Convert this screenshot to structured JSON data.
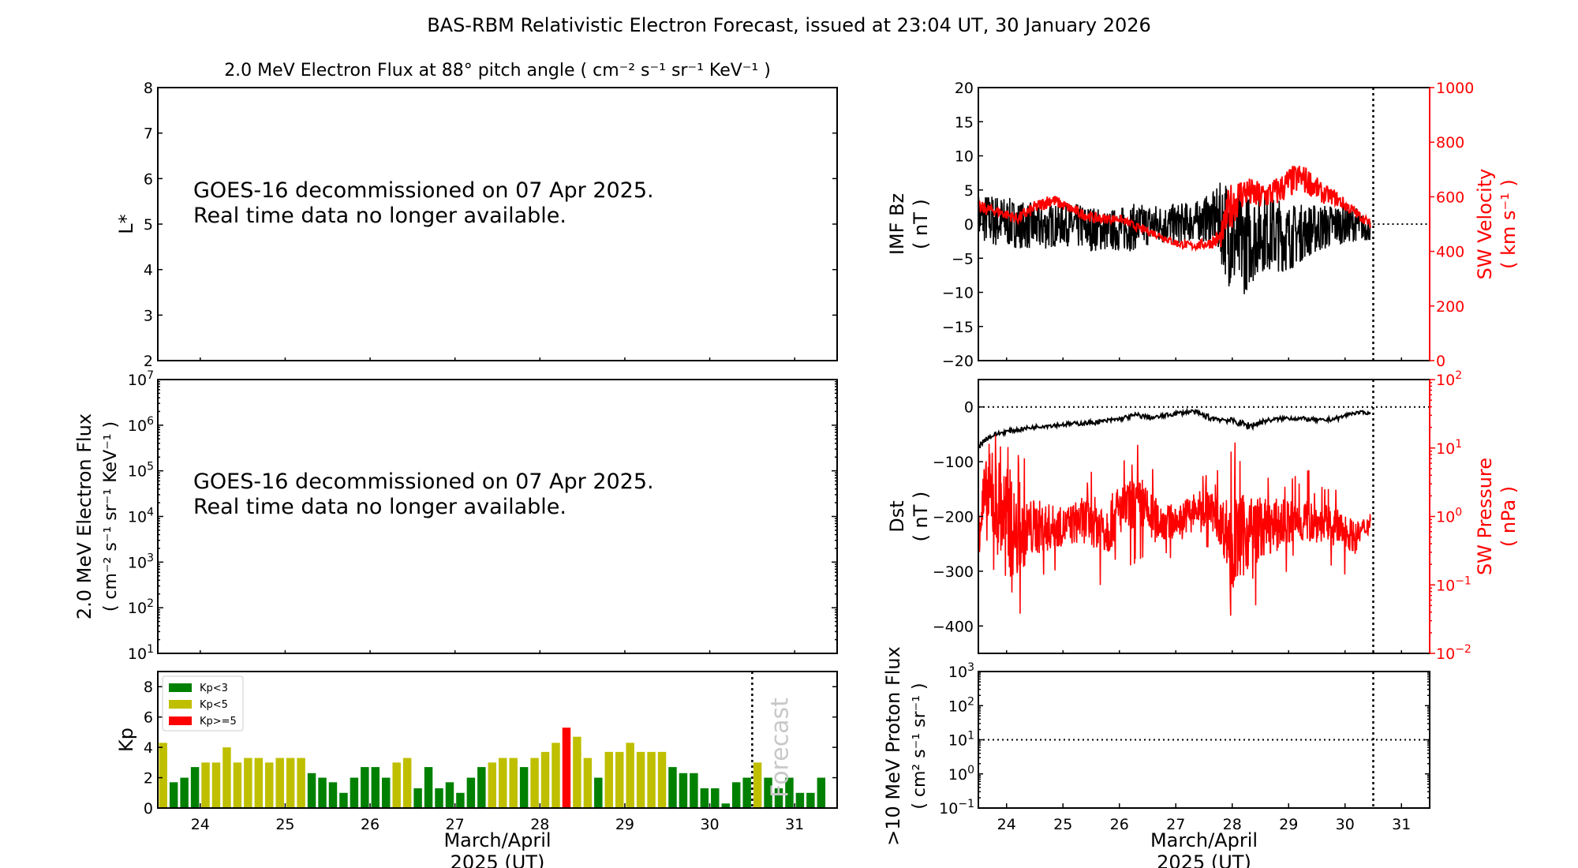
{
  "title": "BAS-RBM Relativistic Electron Forecast, issued at 23:04 UT, 30 January 2026",
  "colors": {
    "kp_low": "#008000",
    "kp_mid": "#bfbf00",
    "kp_high": "#ff0000",
    "sw": "#ff0000",
    "data": "#000000",
    "forecast_label": "#c8c8c8"
  },
  "chart_data": [
    {
      "id": "lstar",
      "type": "line",
      "title": "2.0 MeV Electron Flux at 88° pitch angle ( cm⁻² s⁻¹ sr⁻¹ KeV⁻¹ )",
      "ylabel": "L*",
      "ylim": [
        2,
        8
      ],
      "yticks": [
        "2",
        "3",
        "4",
        "5",
        "6",
        "7",
        "8"
      ],
      "notice": [
        "GOES-16 decommissioned on 07 Apr 2025.",
        "Real time data no longer available."
      ]
    },
    {
      "id": "flux",
      "type": "line",
      "ylabel": [
        "2.0 MeV Electron Flux",
        "( cm⁻² s⁻¹ sr⁻¹ KeV⁻¹ )"
      ],
      "yscale": "log",
      "ylim": [
        10,
        10000000
      ],
      "ytick_exponents": [
        "1",
        "2",
        "3",
        "4",
        "5",
        "6",
        "7"
      ],
      "notice": [
        "GOES-16 decommissioned on 07 Apr 2025.",
        "Real time data no longer available."
      ]
    },
    {
      "id": "kp",
      "type": "bar",
      "ylabel": "Kp",
      "ylim": [
        0,
        9
      ],
      "yticks": [
        "0",
        "2",
        "4",
        "6",
        "8"
      ],
      "xlim": [
        23.5,
        31.5
      ],
      "xticks": [
        "24",
        "25",
        "26",
        "27",
        "28",
        "29",
        "30",
        "31"
      ],
      "xlabel": [
        "March/April",
        "2025 (UT)"
      ],
      "forecast_line_x": 30.5,
      "forecast_label": "Forecast",
      "legend": [
        {
          "label": "Kp<3",
          "color": "#008000"
        },
        {
          "label": "Kp<5",
          "color": "#bfbf00"
        },
        {
          "label": "Kp>=5",
          "color": "#ff0000"
        }
      ],
      "legend_position": "top-left",
      "values": [
        4.3,
        1.7,
        2.0,
        2.7,
        3.0,
        3.0,
        4.0,
        3.0,
        3.3,
        3.3,
        3.0,
        3.3,
        3.3,
        3.3,
        2.3,
        2.0,
        1.7,
        1.0,
        2.0,
        2.7,
        2.7,
        2.0,
        3.0,
        3.3,
        1.3,
        2.7,
        1.3,
        1.7,
        1.0,
        2.0,
        2.7,
        3.0,
        3.3,
        3.3,
        2.7,
        3.3,
        3.7,
        4.3,
        5.3,
        4.7,
        3.3,
        2.0,
        3.7,
        3.7,
        4.3,
        3.7,
        3.7,
        3.7,
        2.7,
        2.3,
        2.3,
        1.3,
        1.3,
        0.3,
        1.7,
        2.0,
        3.0,
        2.0,
        1.3,
        2.0,
        1.0,
        1.0,
        2.0
      ]
    },
    {
      "id": "imf",
      "type": "line",
      "ylabel": [
        "IMF Bz",
        "( nT )"
      ],
      "ylim": [
        -20,
        20
      ],
      "yticks": [
        "−20",
        "−15",
        "−10",
        "−5",
        "0",
        "5",
        "10",
        "15",
        "20"
      ],
      "y2label": [
        "SW Velocity",
        "( km s⁻¹ )"
      ],
      "y2lim": [
        0,
        1000
      ],
      "y2ticks": [
        "0",
        "200",
        "400",
        "600",
        "800",
        "1000"
      ],
      "xlim": [
        23.5,
        31.5
      ],
      "current_time_x": 30.5,
      "zero_line": 0,
      "series": [
        {
          "name": "IMF Bz",
          "color": "#000000",
          "x": [
            23.5,
            23.8,
            24.2,
            24.6,
            25.0,
            25.4,
            25.8,
            26.2,
            26.6,
            27.0,
            27.4,
            27.7,
            27.85,
            28.0,
            28.2,
            28.5,
            28.8,
            29.0,
            29.3,
            29.6,
            29.9,
            30.2,
            30.45
          ],
          "y": [
            1.0,
            0.5,
            0.0,
            -0.5,
            0.0,
            -0.5,
            -1.0,
            -0.5,
            0.0,
            0.0,
            0.5,
            1.0,
            0.0,
            -2.0,
            -3.0,
            -1.0,
            -1.5,
            -2.0,
            -1.0,
            -0.5,
            0.0,
            0.0,
            -1.0
          ],
          "spread": [
            3.5,
            4.0,
            3.5,
            3.5,
            3.0,
            3.5,
            3.0,
            3.5,
            3.0,
            3.0,
            3.0,
            4.0,
            7.0,
            8.5,
            7.5,
            6.0,
            5.5,
            5.0,
            4.0,
            3.5,
            3.0,
            2.5,
            1.5
          ]
        },
        {
          "name": "SW Velocity",
          "color": "#ff0000",
          "axis": "right",
          "x": [
            23.5,
            23.8,
            24.2,
            24.5,
            24.8,
            25.0,
            25.3,
            25.6,
            26.0,
            26.3,
            26.7,
            27.0,
            27.3,
            27.6,
            27.8,
            27.95,
            28.2,
            28.5,
            28.8,
            29.0,
            29.2,
            29.4,
            29.6,
            29.8,
            30.0,
            30.2,
            30.45
          ],
          "y": [
            560,
            550,
            520,
            560,
            590,
            570,
            540,
            520,
            520,
            490,
            460,
            430,
            420,
            430,
            450,
            560,
            620,
            600,
            620,
            650,
            670,
            650,
            610,
            600,
            570,
            540,
            500
          ],
          "spread": [
            25,
            20,
            20,
            25,
            25,
            20,
            20,
            20,
            15,
            15,
            15,
            15,
            15,
            20,
            40,
            90,
            60,
            55,
            55,
            60,
            55,
            50,
            35,
            30,
            25,
            20,
            15
          ]
        }
      ]
    },
    {
      "id": "dst",
      "type": "line",
      "ylabel": [
        "Dst",
        "( nT )"
      ],
      "ylim": [
        -450,
        50
      ],
      "yticks": [
        "−400",
        "−300",
        "−200",
        "−100",
        "0"
      ],
      "y2label": [
        "SW Pressure",
        "( nPa )"
      ],
      "y2scale": "log",
      "y2lim": [
        0.01,
        100
      ],
      "y2tick_exponents": [
        "−2",
        "−1",
        "0",
        "1",
        "2"
      ],
      "xlim": [
        23.5,
        31.5
      ],
      "current_time_x": 30.5,
      "zero_line": 0,
      "series": [
        {
          "name": "Dst",
          "color": "#000000",
          "x": [
            23.5,
            23.6,
            23.8,
            24.0,
            24.3,
            24.6,
            25.0,
            25.3,
            25.6,
            26.0,
            26.3,
            26.6,
            27.0,
            27.3,
            27.6,
            28.0,
            28.3,
            28.6,
            29.0,
            29.3,
            29.6,
            29.9,
            30.1,
            30.3,
            30.45
          ],
          "y": [
            -75,
            -60,
            -50,
            -45,
            -40,
            -35,
            -32,
            -30,
            -28,
            -22,
            -15,
            -20,
            -12,
            -8,
            -20,
            -25,
            -35,
            -25,
            -20,
            -22,
            -25,
            -20,
            -12,
            -10,
            -12
          ],
          "spread": [
            5,
            5,
            4,
            4,
            4,
            4,
            4,
            4,
            4,
            4,
            5,
            4,
            4,
            4,
            6,
            5,
            8,
            4,
            4,
            4,
            4,
            4,
            3,
            3,
            2
          ]
        },
        {
          "name": "SW Pressure",
          "color": "#ff0000",
          "axis": "right",
          "x": [
            23.5,
            23.7,
            24.0,
            24.2,
            24.5,
            25.0,
            25.4,
            25.8,
            26.0,
            26.3,
            26.6,
            27.0,
            27.3,
            27.6,
            27.8,
            28.0,
            28.3,
            28.6,
            29.0,
            29.3,
            29.6,
            30.0,
            30.2,
            30.45
          ],
          "y": [
            1.0,
            2.0,
            0.8,
            0.5,
            0.7,
            0.7,
            0.9,
            0.7,
            1.2,
            1.5,
            0.9,
            0.8,
            1.2,
            1.3,
            0.8,
            0.4,
            0.6,
            0.7,
            0.8,
            0.9,
            0.8,
            0.6,
            0.5,
            0.8
          ],
          "spread_log10": [
            0.8,
            0.9,
            1.2,
            0.8,
            0.6,
            0.4,
            0.5,
            0.6,
            0.5,
            0.6,
            0.5,
            0.3,
            0.4,
            0.4,
            0.5,
            1.0,
            0.8,
            0.6,
            0.5,
            0.5,
            0.4,
            0.4,
            0.3,
            0.2
          ]
        }
      ]
    },
    {
      "id": "proton",
      "type": "line",
      "ylabel": [
        ">10 MeV Proton Flux",
        "( cm² s⁻¹ sr⁻¹ )"
      ],
      "yscale": "log",
      "ylim": [
        0.1,
        1000
      ],
      "ytick_exponents": [
        "−1",
        "0",
        "1",
        "2",
        "3"
      ],
      "xlim": [
        23.5,
        31.5
      ],
      "xticks": [
        "24",
        "25",
        "26",
        "27",
        "28",
        "29",
        "30",
        "31"
      ],
      "xlabel": [
        "March/April",
        "2025 (UT)"
      ],
      "current_time_x": 30.5,
      "threshold_line": 10
    }
  ]
}
